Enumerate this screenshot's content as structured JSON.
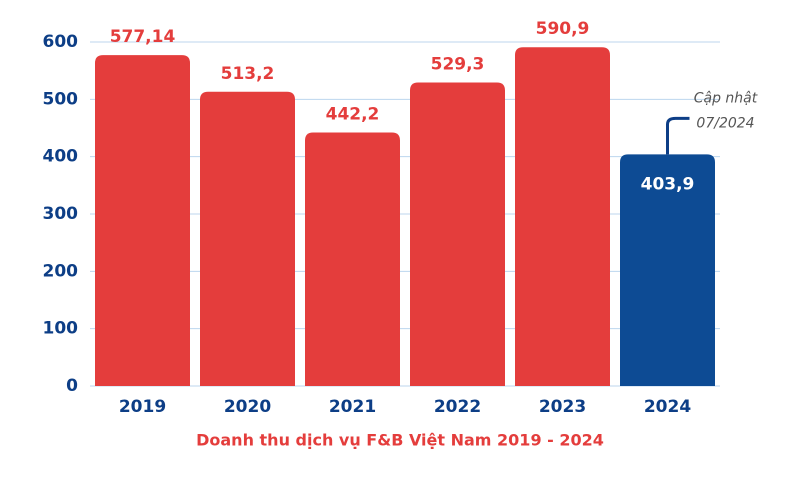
{
  "chart_data": {
    "type": "bar",
    "title": "Doanh thu dịch vụ F&B Việt Nam 2019 - 2024",
    "categories": [
      "2019",
      "2020",
      "2021",
      "2022",
      "2023",
      "2024"
    ],
    "values": [
      577.14,
      513.2,
      442.2,
      529.3,
      590.9,
      403.9
    ],
    "value_labels": [
      "577,14",
      "513,2",
      "442,2",
      "529,3",
      "590,9",
      "403,9"
    ],
    "colors": [
      "#e43d3c",
      "#e43d3c",
      "#e43d3c",
      "#e43d3c",
      "#e43d3c",
      "#0d4b94"
    ],
    "ylim": [
      0,
      600
    ],
    "yticks": [
      0,
      100,
      200,
      300,
      400,
      500,
      600
    ],
    "grid": true,
    "annotation": [
      "Cập nhật",
      "07/2024"
    ]
  }
}
